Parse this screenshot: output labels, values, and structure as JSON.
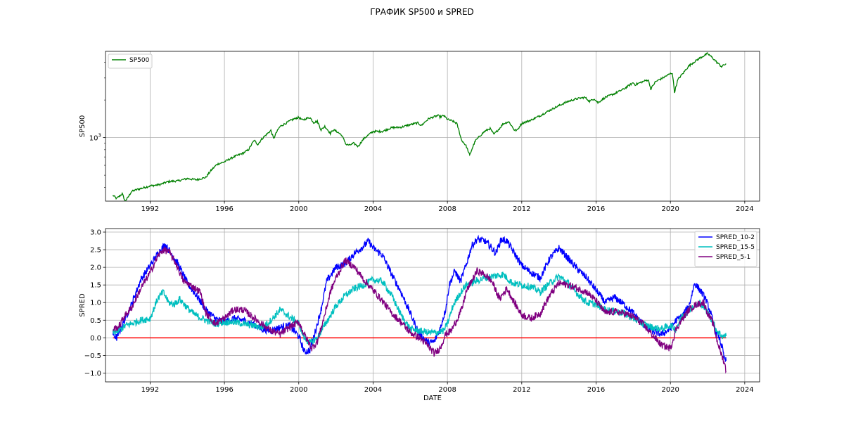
{
  "figure_title": "ГРАФИК SP500 и SPRED",
  "colors": {
    "sp500": "#008000",
    "spred_10_2": "#0000ff",
    "spred_15_5": "#00bfbf",
    "spred_5_1": "#800080",
    "zero_line": "#ff0000",
    "grid": "#b0b0b0"
  },
  "chart_data": [
    {
      "type": "line",
      "title": "",
      "xlabel": "",
      "ylabel": "SP500",
      "yscale": "log",
      "ytick_labels": [
        "10^3"
      ],
      "x_ticks": [
        "1992",
        "1996",
        "2000",
        "2004",
        "2008",
        "2012",
        "2016",
        "2020",
        "2024"
      ],
      "xlim": [
        1989.6,
        2024.8
      ],
      "ylim": [
        310,
        4900
      ],
      "grid": true,
      "legend": "top-left",
      "series": [
        {
          "name": "SP500",
          "x": [
            1990.0,
            1990.2,
            1990.5,
            1990.65,
            1990.8,
            1991.0,
            1991.2,
            1992.0,
            1992.5,
            1993.0,
            1993.5,
            1994.0,
            1994.5,
            1995.0,
            1995.3,
            1995.6,
            1996.0,
            1996.5,
            1997.0,
            1997.3,
            1997.6,
            1997.8,
            1998.0,
            1998.5,
            1998.65,
            1998.8,
            1999.0,
            1999.3,
            1999.6,
            1999.8,
            2000.0,
            2000.2,
            2000.6,
            2000.8,
            2001.0,
            2001.2,
            2001.4,
            2001.7,
            2001.85,
            2002.0,
            2002.3,
            2002.55,
            2002.75,
            2002.95,
            2003.2,
            2003.5,
            2004.0,
            2004.5,
            2005.0,
            2005.5,
            2006.0,
            2006.4,
            2006.6,
            2007.0,
            2007.5,
            2007.6,
            2007.8,
            2008.0,
            2008.3,
            2008.5,
            2008.75,
            2008.9,
            2009.0,
            2009.2,
            2009.5,
            2010.0,
            2010.3,
            2010.5,
            2010.8,
            2011.0,
            2011.3,
            2011.6,
            2011.75,
            2012.0,
            2012.5,
            2013.0,
            2013.5,
            2014.0,
            2014.5,
            2015.0,
            2015.4,
            2015.65,
            2015.9,
            2016.1,
            2016.5,
            2017.0,
            2017.5,
            2018.0,
            2018.1,
            2018.5,
            2018.8,
            2018.95,
            2019.2,
            2019.5,
            2020.0,
            2020.1,
            2020.22,
            2020.4,
            2020.7,
            2021.0,
            2021.5,
            2022.0,
            2022.3,
            2022.5,
            2022.75,
            2023.0
          ],
          "values": [
            345,
            325,
            355,
            310,
            330,
            370,
            380,
            410,
            420,
            445,
            450,
            470,
            460,
            480,
            550,
            610,
            640,
            700,
            750,
            800,
            950,
            880,
            970,
            1140,
            980,
            1100,
            1230,
            1300,
            1380,
            1420,
            1450,
            1380,
            1450,
            1320,
            1350,
            1150,
            1230,
            1080,
            1150,
            1130,
            1050,
            880,
            870,
            900,
            850,
            980,
            1120,
            1120,
            1200,
            1210,
            1270,
            1310,
            1250,
            1420,
            1500,
            1460,
            1500,
            1400,
            1350,
            1300,
            960,
            900,
            860,
            720,
            940,
            1120,
            1180,
            1060,
            1180,
            1290,
            1340,
            1150,
            1140,
            1300,
            1380,
            1500,
            1650,
            1800,
            1950,
            2050,
            2100,
            1950,
            2050,
            1900,
            2100,
            2250,
            2450,
            2750,
            2650,
            2800,
            2900,
            2450,
            2800,
            2950,
            3250,
            3300,
            2300,
            2900,
            3300,
            3750,
            4250,
            4700,
            4300,
            4000,
            3700,
            3900
          ]
        }
      ]
    },
    {
      "type": "line",
      "title": "",
      "xlabel": "DATE",
      "ylabel": "SPRED",
      "x_ticks": [
        "1992",
        "1996",
        "2000",
        "2004",
        "2008",
        "2012",
        "2016",
        "2020",
        "2024"
      ],
      "y_ticks": [
        "−1.0",
        "−0.5",
        "0.0",
        "0.5",
        "1.0",
        "1.5",
        "2.0",
        "2.5",
        "3.0"
      ],
      "xlim": [
        1989.6,
        2024.8
      ],
      "ylim": [
        -1.25,
        3.1
      ],
      "grid": true,
      "legend": "top-right",
      "reference_line": 0,
      "series": [
        {
          "name": "SPRED_10-2",
          "x": [
            1990.0,
            1990.2,
            1990.5,
            1991.0,
            1991.5,
            1992.0,
            1992.5,
            1992.8,
            1993.0,
            1993.5,
            1994.0,
            1994.5,
            1995.0,
            1995.5,
            1996.0,
            1996.5,
            1997.0,
            1997.5,
            1998.0,
            1998.5,
            1999.0,
            1999.5,
            2000.0,
            2000.3,
            2000.6,
            2000.9,
            2001.2,
            2001.5,
            2002.0,
            2002.5,
            2003.0,
            2003.5,
            2003.75,
            2004.0,
            2004.5,
            2005.0,
            2005.5,
            2006.0,
            2006.5,
            2007.0,
            2007.3,
            2007.6,
            2007.9,
            2008.1,
            2008.4,
            2008.7,
            2009.0,
            2009.3,
            2009.6,
            2010.0,
            2010.3,
            2010.6,
            2010.9,
            2011.2,
            2011.6,
            2012.0,
            2012.5,
            2013.0,
            2013.5,
            2014.0,
            2014.5,
            2015.0,
            2015.5,
            2016.0,
            2016.5,
            2017.0,
            2017.5,
            2018.0,
            2018.5,
            2019.0,
            2019.5,
            2020.0,
            2020.3,
            2020.6,
            2021.0,
            2021.3,
            2021.6,
            2021.9,
            2022.2,
            2022.4,
            2022.6,
            2022.8,
            2022.9,
            2023.0
          ],
          "values": [
            0.1,
            0.0,
            0.35,
            0.95,
            1.65,
            2.05,
            2.45,
            2.65,
            2.5,
            2.1,
            1.55,
            1.2,
            0.8,
            0.55,
            0.45,
            0.55,
            0.5,
            0.4,
            0.25,
            0.2,
            0.3,
            0.35,
            0.05,
            -0.4,
            -0.35,
            0.2,
            0.8,
            1.6,
            2.0,
            2.1,
            2.4,
            2.6,
            2.75,
            2.55,
            2.35,
            1.8,
            1.3,
            0.7,
            0.1,
            -0.15,
            -0.1,
            0.25,
            0.8,
            1.5,
            1.9,
            1.6,
            2.05,
            2.6,
            2.8,
            2.75,
            2.6,
            2.4,
            2.8,
            2.75,
            2.4,
            2.05,
            1.85,
            1.7,
            2.25,
            2.55,
            2.25,
            1.95,
            1.7,
            1.35,
            1.0,
            1.15,
            0.95,
            0.7,
            0.4,
            0.2,
            0.1,
            0.25,
            0.5,
            0.6,
            0.9,
            1.55,
            1.35,
            1.1,
            0.65,
            0.2,
            0.05,
            -0.3,
            -0.6,
            -0.65
          ]
        },
        {
          "name": "SPRED_15-5",
          "x": [
            1990.0,
            1990.3,
            1990.7,
            1991.0,
            1991.5,
            1992.0,
            1992.4,
            1992.7,
            1993.0,
            1993.3,
            1993.6,
            1994.0,
            1994.3,
            1994.6,
            1995.0,
            1995.5,
            1996.0,
            1996.5,
            1997.0,
            1997.5,
            1998.0,
            1998.3,
            1998.6,
            1999.0,
            1999.5,
            2000.0,
            2000.3,
            2000.6,
            2001.0,
            2001.5,
            2002.0,
            2002.5,
            2003.0,
            2003.5,
            2004.0,
            2004.5,
            2005.0,
            2005.5,
            2006.0,
            2006.5,
            2007.0,
            2007.4,
            2007.8,
            2008.0,
            2008.3,
            2008.6,
            2009.0,
            2009.5,
            2010.0,
            2010.5,
            2011.0,
            2011.5,
            2012.0,
            2012.5,
            2013.0,
            2013.5,
            2014.0,
            2014.5,
            2015.0,
            2015.5,
            2016.0,
            2016.5,
            2017.0,
            2017.5,
            2018.0,
            2018.5,
            2019.0,
            2019.5,
            2020.0,
            2020.3,
            2020.6,
            2021.0,
            2021.3,
            2021.6,
            2021.9,
            2022.2,
            2022.5,
            2022.8,
            2023.0
          ],
          "values": [
            0.15,
            0.2,
            0.35,
            0.4,
            0.5,
            0.55,
            1.1,
            1.3,
            1.0,
            0.95,
            1.1,
            0.85,
            0.7,
            0.6,
            0.5,
            0.4,
            0.45,
            0.45,
            0.4,
            0.35,
            0.3,
            0.4,
            0.55,
            0.8,
            0.6,
            0.4,
            0.0,
            -0.15,
            0.0,
            0.45,
            0.9,
            1.2,
            1.4,
            1.5,
            1.65,
            1.6,
            1.2,
            0.65,
            0.25,
            0.2,
            0.15,
            0.15,
            0.2,
            0.4,
            0.9,
            1.2,
            1.5,
            1.6,
            1.7,
            1.75,
            1.8,
            1.55,
            1.5,
            1.45,
            1.3,
            1.55,
            1.75,
            1.55,
            1.25,
            1.0,
            0.95,
            0.8,
            0.75,
            0.7,
            0.55,
            0.4,
            0.3,
            0.25,
            0.35,
            0.25,
            0.6,
            0.8,
            0.9,
            1.0,
            0.8,
            0.55,
            0.2,
            0.05,
            0.05
          ]
        },
        {
          "name": "SPRED_5-1",
          "x": [
            1990.0,
            1990.3,
            1990.6,
            1991.0,
            1991.5,
            1992.0,
            1992.4,
            1992.7,
            1993.0,
            1993.4,
            1993.8,
            1994.0,
            1994.3,
            1994.7,
            1995.0,
            1995.5,
            1996.0,
            1996.5,
            1997.0,
            1997.5,
            1998.0,
            1998.5,
            1999.0,
            1999.5,
            2000.0,
            2000.3,
            2000.7,
            2001.0,
            2001.3,
            2001.7,
            2002.0,
            2002.5,
            2003.0,
            2003.5,
            2004.0,
            2004.5,
            2005.0,
            2005.5,
            2006.0,
            2006.5,
            2007.0,
            2007.3,
            2007.6,
            2007.9,
            2008.2,
            2008.5,
            2008.8,
            2009.0,
            2009.3,
            2009.6,
            2010.0,
            2010.4,
            2010.8,
            2011.2,
            2011.6,
            2012.0,
            2012.5,
            2013.0,
            2013.5,
            2014.0,
            2014.5,
            2015.0,
            2015.5,
            2016.0,
            2016.5,
            2017.0,
            2017.5,
            2018.0,
            2018.5,
            2019.0,
            2019.5,
            2020.0,
            2020.3,
            2020.6,
            2021.0,
            2021.4,
            2021.8,
            2022.0,
            2022.3,
            2022.5,
            2022.7,
            2022.9,
            2023.0
          ],
          "values": [
            0.25,
            0.3,
            0.6,
            0.85,
            1.4,
            1.85,
            2.3,
            2.5,
            2.45,
            2.1,
            1.6,
            1.55,
            1.45,
            1.3,
            0.7,
            0.4,
            0.55,
            0.8,
            0.8,
            0.6,
            0.4,
            0.2,
            0.1,
            0.3,
            0.45,
            0.1,
            -0.3,
            -0.1,
            0.45,
            1.3,
            1.7,
            2.2,
            2.0,
            1.65,
            1.35,
            1.05,
            0.7,
            0.45,
            0.15,
            0.0,
            -0.25,
            -0.45,
            -0.3,
            0.1,
            0.2,
            0.5,
            0.85,
            1.3,
            1.6,
            1.9,
            1.8,
            1.6,
            1.1,
            1.4,
            1.0,
            0.65,
            0.55,
            0.7,
            1.2,
            1.55,
            1.5,
            1.4,
            1.3,
            1.05,
            0.7,
            0.75,
            0.7,
            0.6,
            0.4,
            0.1,
            -0.2,
            -0.3,
            0.25,
            0.5,
            0.8,
            0.95,
            1.0,
            0.7,
            0.4,
            -0.05,
            -0.4,
            -0.7,
            -0.95
          ]
        }
      ]
    }
  ]
}
